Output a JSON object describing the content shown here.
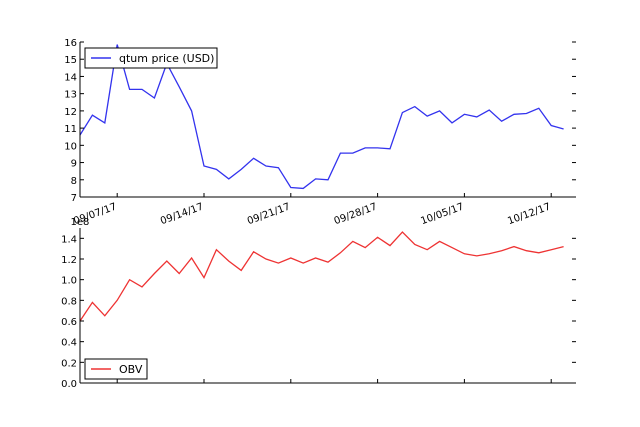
{
  "chart_data": [
    {
      "type": "line",
      "title": "",
      "xlabel": "",
      "ylabel": "",
      "xlim": [
        "2017-09-04",
        "2017-10-14"
      ],
      "ylim": [
        7,
        16
      ],
      "x_ticks": [
        "2017-09-07",
        "2017-09-14",
        "2017-09-21",
        "2017-09-28",
        "2017-10-05",
        "2017-10-12"
      ],
      "x_tick_labels": [
        "09/07/17",
        "09/14/17",
        "09/21/17",
        "09/28/17",
        "10/05/17",
        "10/12/17"
      ],
      "y_ticks": [
        7,
        8,
        9,
        10,
        11,
        12,
        13,
        14,
        15,
        16
      ],
      "y_tick_labels": [
        "7",
        "8",
        "9",
        "10",
        "11",
        "12",
        "13",
        "14",
        "15",
        "16"
      ],
      "legend": "top-left",
      "grid": false,
      "series": [
        {
          "name": "qtum price (USD)",
          "color": "#3333ee",
          "x": [
            "2017-09-04",
            "2017-09-05",
            "2017-09-06",
            "2017-09-07",
            "2017-09-08",
            "2017-09-09",
            "2017-09-10",
            "2017-09-11",
            "2017-09-12",
            "2017-09-13",
            "2017-09-14",
            "2017-09-15",
            "2017-09-16",
            "2017-09-17",
            "2017-09-18",
            "2017-09-19",
            "2017-09-20",
            "2017-09-21",
            "2017-09-22",
            "2017-09-23",
            "2017-09-24",
            "2017-09-25",
            "2017-09-26",
            "2017-09-27",
            "2017-09-28",
            "2017-09-29",
            "2017-09-30",
            "2017-10-01",
            "2017-10-02",
            "2017-10-03",
            "2017-10-04",
            "2017-10-05",
            "2017-10-06",
            "2017-10-07",
            "2017-10-08",
            "2017-10-09",
            "2017-10-10",
            "2017-10-11",
            "2017-10-12",
            "2017-10-13",
            "2017-10-14"
          ],
          "values": [
            10.6,
            11.75,
            11.3,
            15.85,
            13.25,
            13.25,
            12.75,
            14.75,
            13.4,
            12.0,
            8.8,
            8.6,
            8.05,
            8.6,
            9.25,
            8.8,
            8.7,
            7.55,
            7.5,
            8.05,
            8.0,
            9.55,
            9.55,
            9.85,
            9.85,
            9.8,
            11.9,
            12.25,
            11.7,
            12.0,
            11.3,
            11.8,
            11.65,
            12.05,
            11.4,
            11.8,
            11.85,
            12.15,
            11.15,
            10.95,
            null
          ]
        }
      ]
    },
    {
      "type": "line",
      "title": "",
      "xlabel": "",
      "ylabel": "",
      "y_scale_label": "1e8",
      "xlim": [
        "2017-09-04",
        "2017-10-14"
      ],
      "ylim": [
        0.0,
        1.5
      ],
      "y_ticks": [
        0.0,
        0.2,
        0.4,
        0.6,
        0.8,
        1.0,
        1.2,
        1.4
      ],
      "y_tick_labels": [
        "0.0",
        "0.2",
        "0.4",
        "0.6",
        "0.8",
        "1.0",
        "1.2",
        "1.4"
      ],
      "legend": "bottom-left",
      "grid": false,
      "series": [
        {
          "name": "OBV",
          "color": "#ee3333",
          "x": [
            "2017-09-04",
            "2017-09-05",
            "2017-09-06",
            "2017-09-07",
            "2017-09-08",
            "2017-09-09",
            "2017-09-10",
            "2017-09-11",
            "2017-09-12",
            "2017-09-13",
            "2017-09-14",
            "2017-09-15",
            "2017-09-16",
            "2017-09-17",
            "2017-09-18",
            "2017-09-19",
            "2017-09-20",
            "2017-09-21",
            "2017-09-22",
            "2017-09-23",
            "2017-09-24",
            "2017-09-25",
            "2017-09-26",
            "2017-09-27",
            "2017-09-28",
            "2017-09-29",
            "2017-09-30",
            "2017-10-01",
            "2017-10-02",
            "2017-10-03",
            "2017-10-04",
            "2017-10-05",
            "2017-10-06",
            "2017-10-07",
            "2017-10-08",
            "2017-10-09",
            "2017-10-10",
            "2017-10-11",
            "2017-10-12",
            "2017-10-13",
            "2017-10-14"
          ],
          "values": [
            0.6,
            0.78,
            0.65,
            0.8,
            1.0,
            0.93,
            1.06,
            1.18,
            1.06,
            1.21,
            1.02,
            1.29,
            1.18,
            1.09,
            1.27,
            1.2,
            1.16,
            1.21,
            1.16,
            1.21,
            1.17,
            1.26,
            1.37,
            1.31,
            1.41,
            1.33,
            1.46,
            1.34,
            1.29,
            1.37,
            1.31,
            1.25,
            1.23,
            1.25,
            1.28,
            1.32,
            1.28,
            1.26,
            1.29,
            1.32,
            null
          ]
        }
      ]
    }
  ]
}
